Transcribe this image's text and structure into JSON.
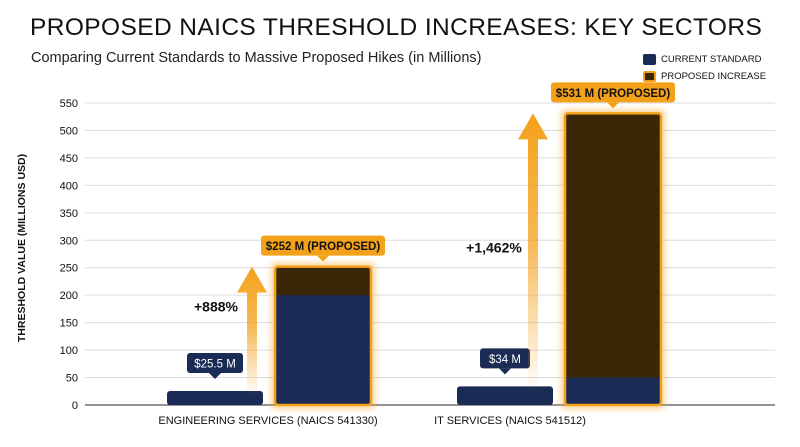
{
  "title": "PROPOSED NAICS THRESHOLD INCREASES: KEY SECTORS",
  "subtitle": "Comparing Current Standards to Massive Proposed Hikes (in Millions)",
  "legend": [
    {
      "label": "CURRENT STANDARD",
      "color": "#1a2b55"
    },
    {
      "label": "PROPOSED INCREASE",
      "color": "#3b2608",
      "border": "#f4a11a"
    }
  ],
  "colors": {
    "current": "#1a2b55",
    "proposed_fill": "#3b2608",
    "proposed_border": "#f4a11a",
    "arrow": "#f4a11a",
    "grid": "#dcdcdc"
  },
  "chart_data": {
    "type": "bar",
    "ylabel": "THRESHOLD VALUE (MILLIONS USD)",
    "ylim": [
      0,
      550
    ],
    "yticks": [
      0,
      50,
      100,
      150,
      200,
      250,
      300,
      350,
      400,
      450,
      500,
      550
    ],
    "grid": true,
    "legend_position": "top-right",
    "categories": [
      "ENGINEERING SERVICES (NAICS 541330)",
      "IT SERVICES (NAICS 541512)"
    ],
    "series": [
      {
        "name": "CURRENT STANDARD",
        "values": [
          25.5,
          34
        ]
      },
      {
        "name": "PROPOSED INCREASE",
        "values": [
          252,
          531
        ]
      }
    ],
    "current_labels": [
      "$25.5 M",
      "$34 M"
    ],
    "proposed_labels": [
      "$252 M (PROPOSED)",
      "$531 M (PROPOSED)"
    ],
    "increase_labels": [
      "+888%",
      "+1,462%"
    ]
  }
}
